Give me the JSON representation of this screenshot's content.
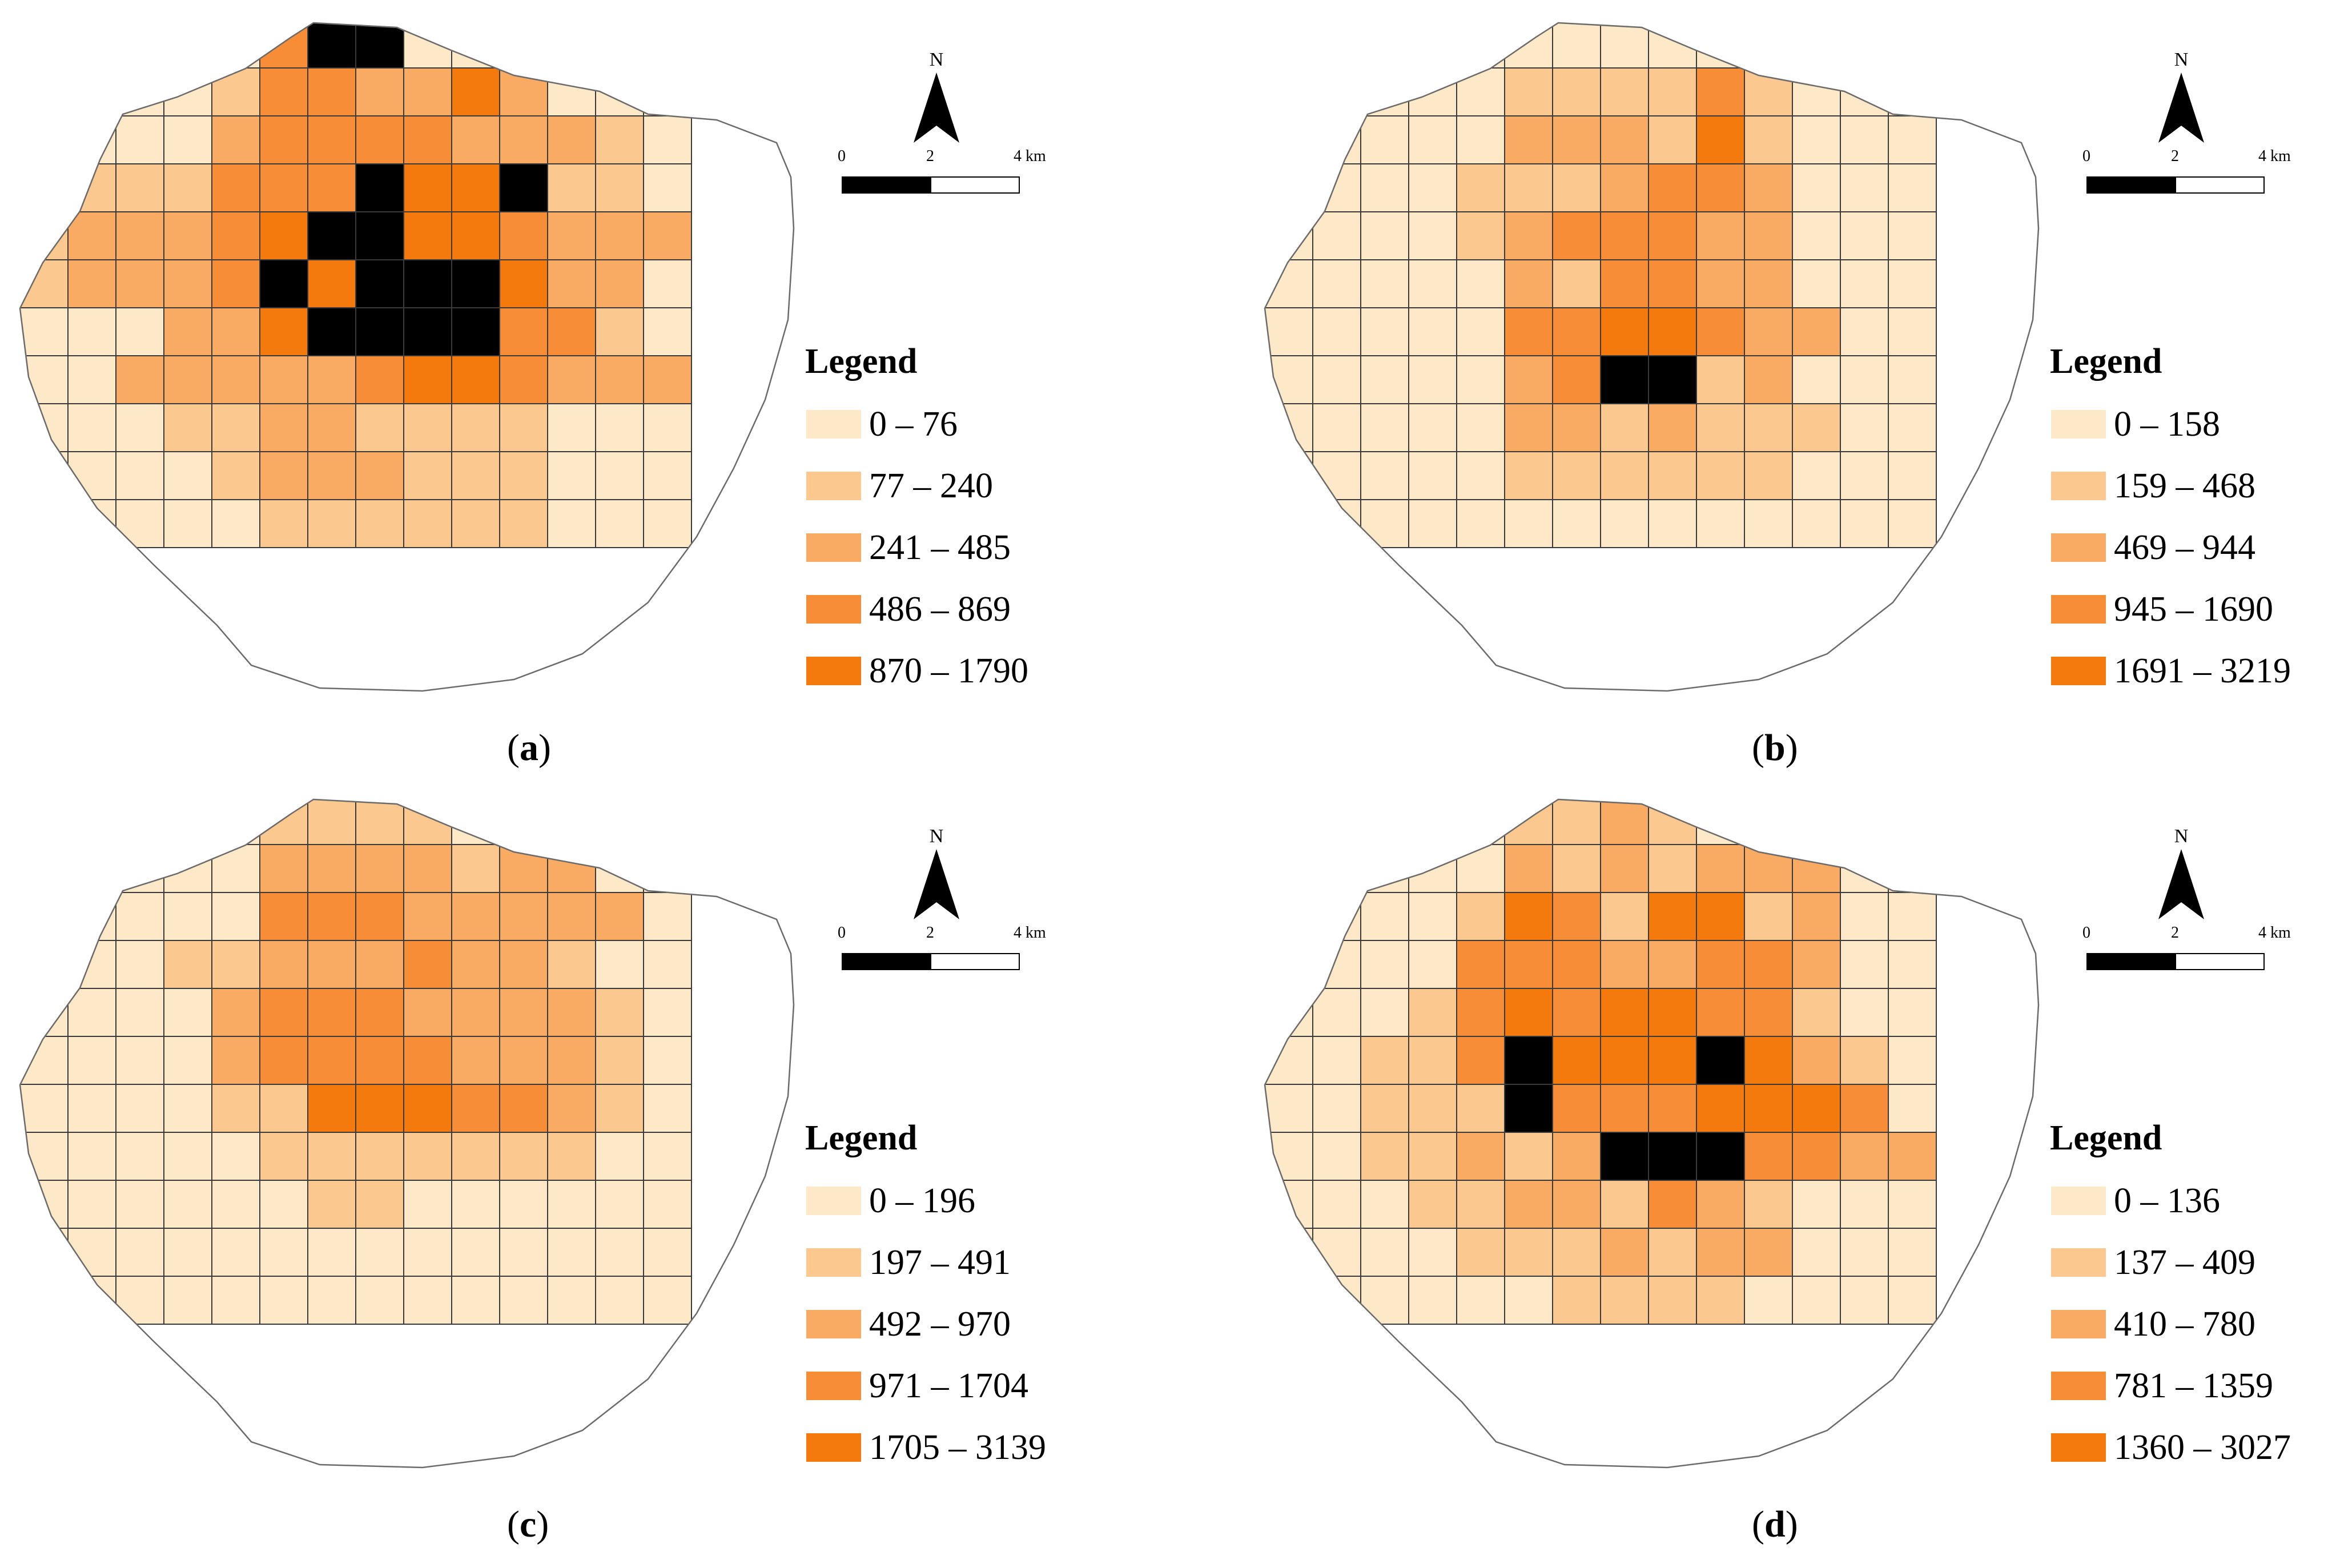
{
  "colors": {
    "class1": "#FDE8C8",
    "class2": "#FBC88F",
    "class3": "#F9AA63",
    "class4": "#F88D38",
    "class5": "#F57A0E",
    "grid_line": "#3A3A3A",
    "boundary": "#6B6B6B"
  },
  "north": {
    "label": "N"
  },
  "scale": {
    "labels": [
      "0",
      "2",
      "4 km"
    ]
  },
  "legend": {
    "title": "Legend"
  },
  "panels": [
    {
      "caption": "a",
      "classes": [
        "0 – 76",
        "77 – 240",
        "241 – 485",
        "486 – 869",
        "870 – 1790"
      ],
      "grid": [
        "00000355000000",
        "00001332242000",
        "00002333322210",
        "01113335445110",
        "12223455443222",
        "12223545554220",
        "00022455553310",
        "00222223443222",
        "00011221111000",
        "00001222111000",
        "00000111111000"
      ]
    },
    {
      "caption": "b",
      "classes": [
        "0 – 158",
        "159 – 468",
        "469 – 944",
        "945 – 1690",
        "1691 – 3219"
      ],
      "grid": [
        "00000000000000",
        "00000111131000",
        "00000222141000",
        "00001112332000",
        "00001233322000",
        "00000213322000",
        "00000334432200",
        "00000235512000",
        "00000221211100",
        "00000111111000",
        "00000000000000"
      ]
    },
    {
      "caption": "c",
      "classes": [
        "0 – 196",
        "197 – 491",
        "492 – 970",
        "971 – 1704",
        "1705 – 3139"
      ],
      "grid": [
        "00000111100000",
        "00000222212200",
        "00000333222220",
        "00011222322100",
        "00002333222210",
        "00002333322210",
        "00001144433210",
        "00000111111100",
        "00000011000000",
        "00000000000000",
        "00000000000000"
      ]
    },
    {
      "caption": "d",
      "classes": [
        "0 – 136",
        "137 – 409",
        "410 – 780",
        "781 – 1359",
        "1360 – 3027"
      ],
      "grid": [
        "00000112100000",
        "00000212122200",
        "00001431441200",
        "00003332233200",
        "00013434433100",
        "00113544454210",
        "00111533344430",
        "00112125553322",
        "00011221321000",
        "00001112122000",
        "00000011110000"
      ]
    }
  ]
}
